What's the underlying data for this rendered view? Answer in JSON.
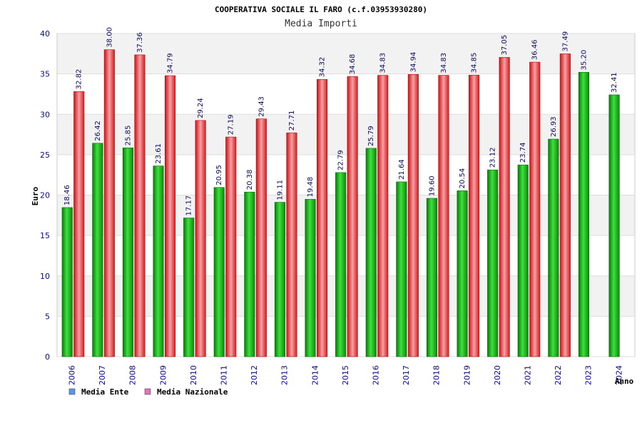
{
  "chart_data": {
    "type": "bar",
    "title": "COOPERATIVA SOCIALE IL FARO (c.f.03953930280)",
    "subtitle": "Media Importi",
    "xlabel": "Anno",
    "ylabel": "Euro",
    "ylim": [
      0,
      40
    ],
    "yticks": [
      0,
      5,
      10,
      15,
      20,
      25,
      30,
      35,
      40
    ],
    "grid": true,
    "legend_position": "bottom-left",
    "categories": [
      "2006",
      "2007",
      "2008",
      "2009",
      "2010",
      "2011",
      "2012",
      "2013",
      "2014",
      "2015",
      "2016",
      "2017",
      "2018",
      "2019",
      "2020",
      "2021",
      "2022",
      "2023",
      "2024"
    ],
    "series": [
      {
        "name": "Media Ente",
        "color": "#1fbf1f",
        "legend_color": "#5599ee",
        "values": [
          18.46,
          26.42,
          25.85,
          23.61,
          17.17,
          20.95,
          20.38,
          19.11,
          19.48,
          22.79,
          25.79,
          21.64,
          19.6,
          20.54,
          23.12,
          23.74,
          26.93,
          35.2,
          32.41
        ],
        "labels": [
          "18.46",
          "26.42",
          "25.85",
          "23.61",
          "17.17",
          "20.95",
          "20.38",
          "19.11",
          "19.48",
          "22.79",
          "25.79",
          "21.64",
          "19.60",
          "20.54",
          "23.12",
          "23.74",
          "26.93",
          "35.20",
          "32.41"
        ]
      },
      {
        "name": "Media Nazionale",
        "color": "#ee2a2a",
        "legend_color": "#dd77bb",
        "values": [
          32.82,
          38.0,
          37.36,
          34.79,
          29.24,
          27.19,
          29.43,
          27.71,
          34.32,
          34.68,
          34.83,
          34.94,
          34.83,
          34.85,
          37.05,
          36.46,
          37.49,
          null,
          null
        ],
        "labels": [
          "32.82",
          "38.00",
          "37.36",
          "34.79",
          "29.24",
          "27.19",
          "29.43",
          "27.71",
          "34.32",
          "34.68",
          "34.83",
          "34.94",
          "34.83",
          "34.85",
          "37.05",
          "36.46",
          "37.49",
          null,
          null
        ]
      }
    ]
  }
}
